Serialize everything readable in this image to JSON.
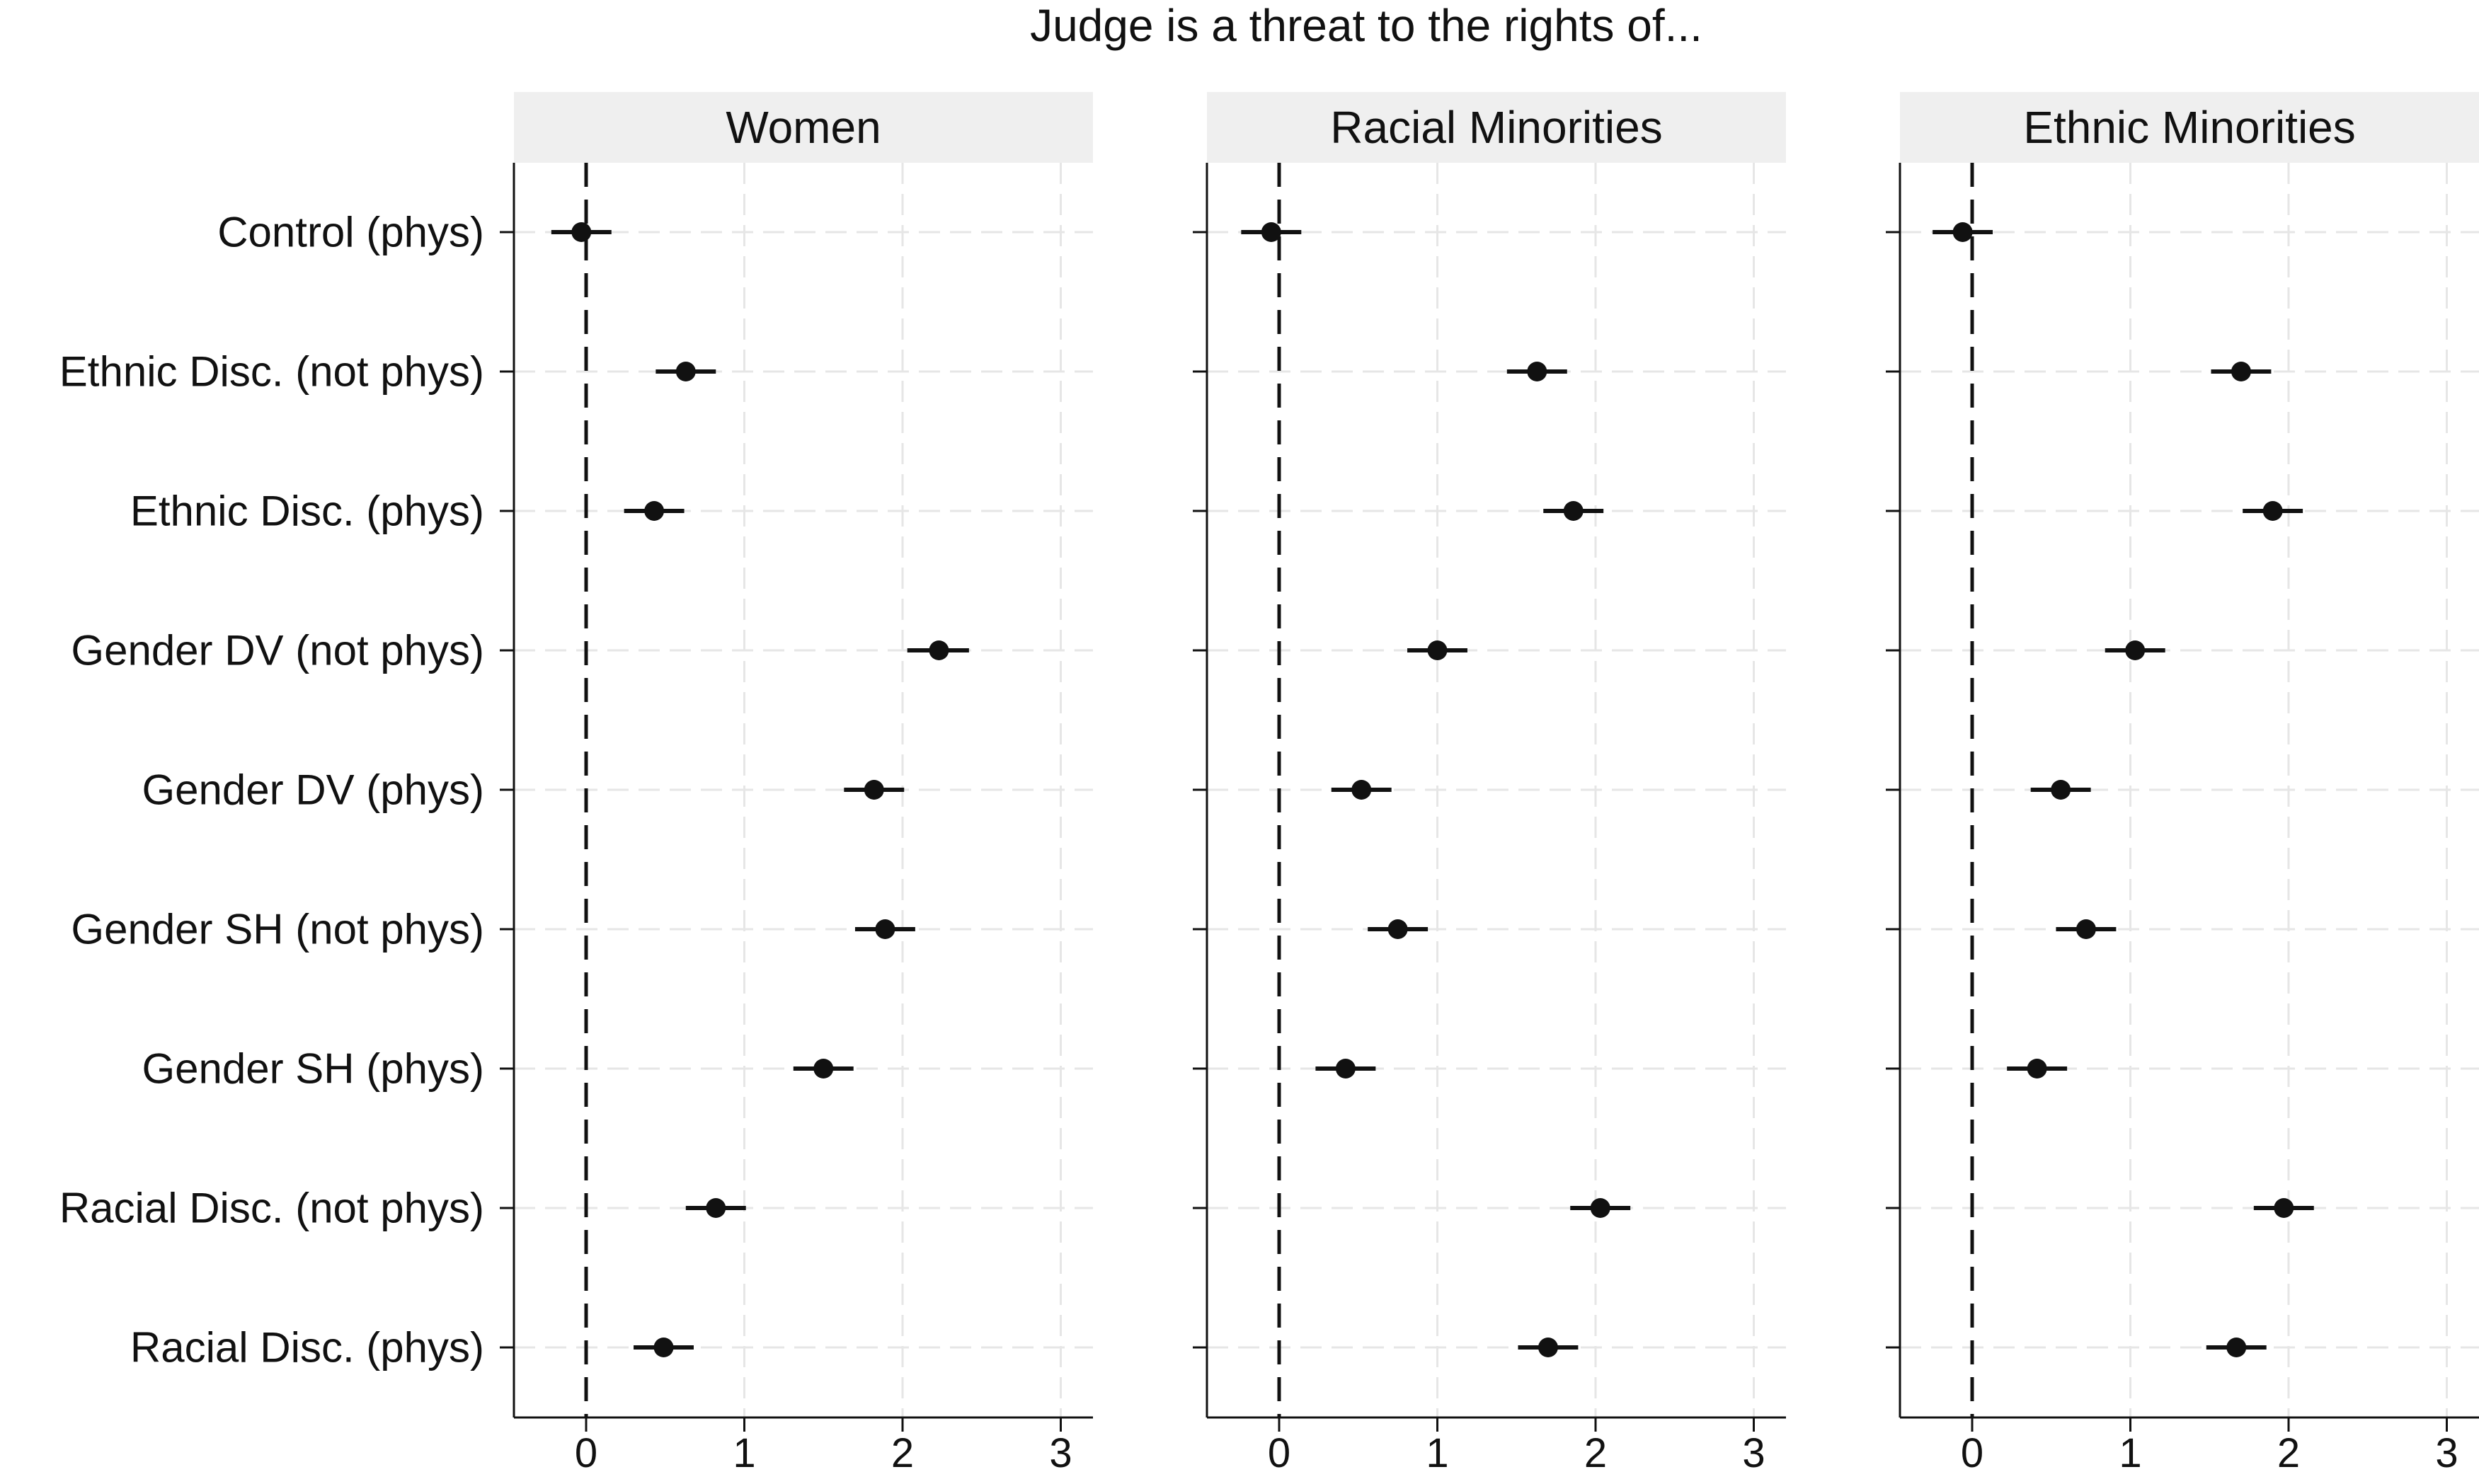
{
  "chart_data": {
    "type": "scatter",
    "subtype": "coefficient-plot",
    "title": "Judge is a threat to the rights of...",
    "categories": [
      "Control (phys)",
      "Ethnic Disc. (not phys)",
      "Ethnic Disc. (phys)",
      "Gender DV (not phys)",
      "Gender DV (phys)",
      "Gender SH (not phys)",
      "Gender SH (phys)",
      "Racial Disc. (not phys)",
      "Racial Disc. (phys)"
    ],
    "xlim": [
      -0.45,
      3.2
    ],
    "xticks": [
      0,
      1,
      2,
      3
    ],
    "reference_line": 0,
    "grid": true,
    "panels": [
      {
        "name": "Women",
        "estimates": [
          -0.03,
          0.63,
          0.43,
          2.23,
          1.82,
          1.89,
          1.5,
          0.82,
          0.49
        ],
        "ci_low": [
          -0.22,
          0.44,
          0.24,
          2.03,
          1.63,
          1.7,
          1.31,
          0.63,
          0.3
        ],
        "ci_high": [
          0.16,
          0.82,
          0.62,
          2.42,
          2.01,
          2.08,
          1.69,
          1.01,
          0.68
        ]
      },
      {
        "name": "Racial Minorities",
        "estimates": [
          -0.05,
          1.63,
          1.86,
          1.0,
          0.52,
          0.75,
          0.42,
          2.03,
          1.7
        ],
        "ci_low": [
          -0.24,
          1.44,
          1.67,
          0.81,
          0.33,
          0.56,
          0.23,
          1.84,
          1.51
        ],
        "ci_high": [
          0.14,
          1.82,
          2.05,
          1.19,
          0.71,
          0.94,
          0.61,
          2.22,
          1.89
        ]
      },
      {
        "name": "Ethnic Minorities",
        "estimates": [
          -0.06,
          1.7,
          1.9,
          1.03,
          0.56,
          0.72,
          0.41,
          1.97,
          1.67
        ],
        "ci_low": [
          -0.25,
          1.51,
          1.71,
          0.84,
          0.37,
          0.53,
          0.22,
          1.78,
          1.48
        ],
        "ci_high": [
          0.13,
          1.89,
          2.09,
          1.22,
          0.75,
          0.91,
          0.6,
          2.16,
          1.86
        ]
      }
    ]
  }
}
